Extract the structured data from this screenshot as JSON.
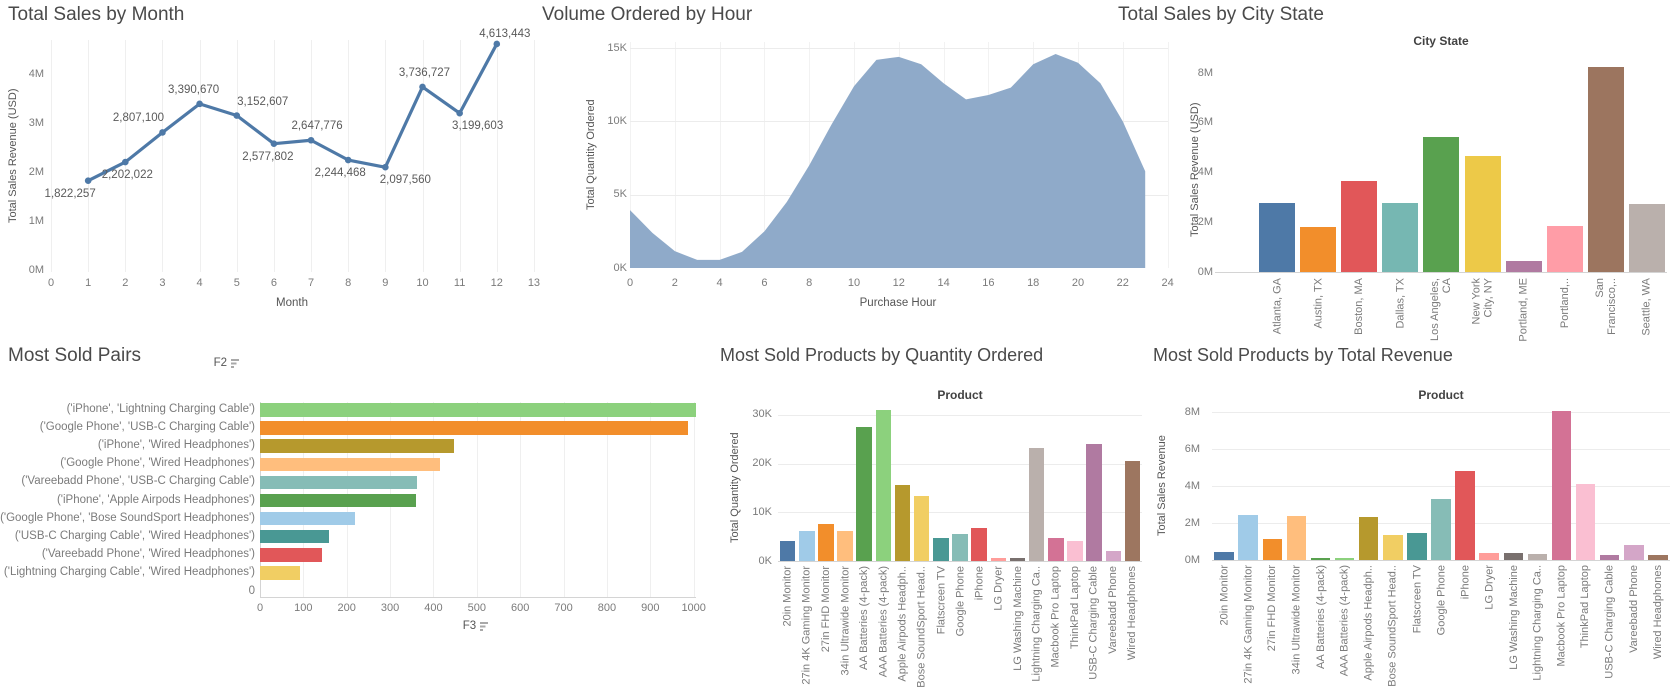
{
  "chart_data": [
    {
      "id": "total-sales-by-month",
      "type": "line",
      "title": "Total Sales by Month",
      "xlabel": "Month",
      "ylabel": "Total Sales Revenue (USD)",
      "x": [
        1,
        2,
        3,
        4,
        5,
        6,
        7,
        8,
        9,
        10,
        11,
        12
      ],
      "values": [
        1822257,
        2202022,
        2807100,
        3390670,
        3152607,
        2577802,
        2647776,
        2244468,
        2097560,
        3736727,
        3199603,
        4613443
      ],
      "point_labels": [
        "1,822,257",
        "2,202,022",
        "2,807,100",
        "3,390,670",
        "3,152,607",
        "2,577,802",
        "2,647,776",
        "2,244,468",
        "2,097,560",
        "3,736,727",
        "3,199,603",
        "4,613,443"
      ],
      "label_dy": [
        7,
        7,
        -20,
        -20,
        -20,
        7,
        -20,
        7,
        7,
        -20,
        7,
        -16
      ],
      "label_dx": [
        -18,
        2,
        -24,
        -6,
        26,
        -6,
        6,
        -8,
        20,
        2,
        18,
        8
      ],
      "xticks": [
        "0",
        "1",
        "2",
        "3",
        "4",
        "5",
        "6",
        "7",
        "8",
        "9",
        "10",
        "11",
        "12",
        "13"
      ],
      "yticks": [
        "0M",
        "1M",
        "2M",
        "3M",
        "4M"
      ],
      "xlim": [
        0,
        13
      ],
      "ylim": [
        0,
        4700000
      ],
      "line_color": "#4e79a7",
      "grid": "vertical"
    },
    {
      "id": "volume-ordered-by-hour",
      "type": "area",
      "title": "Volume Ordered by Hour",
      "xlabel": "Purchase Hour",
      "ylabel": "Total Quantity Ordered",
      "x": [
        0,
        1,
        2,
        3,
        4,
        5,
        6,
        7,
        8,
        9,
        10,
        11,
        12,
        13,
        14,
        15,
        16,
        17,
        18,
        19,
        20,
        21,
        22,
        23
      ],
      "values": [
        3950,
        2400,
        1150,
        550,
        550,
        1100,
        2500,
        4500,
        7000,
        9800,
        12400,
        14200,
        14400,
        13900,
        12600,
        11500,
        11800,
        12300,
        13900,
        14600,
        14000,
        12600,
        10000,
        6600
      ],
      "xticks": [
        "0",
        "2",
        "4",
        "6",
        "8",
        "10",
        "12",
        "14",
        "16",
        "18",
        "20",
        "22",
        "24"
      ],
      "yticks": [
        "0K",
        "5K",
        "10K",
        "15K"
      ],
      "xlim": [
        0,
        24
      ],
      "ylim": [
        0,
        15000
      ],
      "fill_color": "#8faac9",
      "grid": "both"
    },
    {
      "id": "total-sales-by-city-state",
      "type": "bar",
      "title": "Total Sales by City State",
      "subtitle": "City State",
      "ylabel": "Total Sales Revenue (USD)",
      "categories": [
        [
          "Atlanta, GA"
        ],
        [
          "Austin, TX"
        ],
        [
          "Boston, MA"
        ],
        [
          "Dallas, TX"
        ],
        [
          "Los Angeles,",
          "CA"
        ],
        [
          "New York",
          "City, NY"
        ],
        [
          "Portland, ME"
        ],
        [
          "Portland,.."
        ],
        [
          "San",
          "Francisco,.."
        ],
        [
          "Seattle, WA"
        ]
      ],
      "values": [
        2795499,
        1819582,
        3661642,
        2767975,
        5452571,
        4664317,
        449758,
        1870732,
        8262204,
        2747755
      ],
      "colors": [
        "#4e79a7",
        "#f28e2b",
        "#e15759",
        "#76b7b2",
        "#59a14f",
        "#edc948",
        "#b07aa1",
        "#ff9da7",
        "#9c755f",
        "#bab0ac"
      ],
      "yticks": [
        "0M",
        "2M",
        "4M",
        "6M",
        "8M"
      ],
      "ylim": [
        0,
        8800000
      ],
      "grid": "off"
    },
    {
      "id": "most-sold-pairs",
      "type": "hbar",
      "title": "Most Sold Pairs",
      "column_header": "F2",
      "xaxis_label": "F3",
      "categories": [
        "('iPhone', 'Lightning Charging Cable')",
        "('Google Phone', 'USB-C Charging Cable')",
        "('iPhone', 'Wired Headphones')",
        "('Google Phone', 'Wired Headphones')",
        "('Vareebadd Phone', 'USB-C Charging Cable')",
        "('iPhone', 'Apple Airpods Headphones')",
        "('Google Phone', 'Bose SoundSport Headphones')",
        "('USB-C Charging Cable', 'Wired Headphones')",
        "('Vareebadd Phone', 'Wired Headphones')",
        "('Lightning Charging Cable', 'Wired Headphones')"
      ],
      "values": [
        1005,
        987,
        447,
        414,
        361,
        360,
        220,
        160,
        143,
        92
      ],
      "colors": [
        "#8cd17d",
        "#f28e2b",
        "#b6992d",
        "#ffbe7d",
        "#86bcb6",
        "#59a14f",
        "#a0cbe8",
        "#499894",
        "#e15759",
        "#f1ce63"
      ],
      "extra_row_label": "0",
      "xticks": [
        "0",
        "100",
        "200",
        "300",
        "400",
        "500",
        "600",
        "700",
        "800",
        "900",
        "1000"
      ],
      "xlim": [
        0,
        1005
      ],
      "grid": "vertical"
    },
    {
      "id": "most-sold-products-by-quantity-ordered",
      "type": "bar",
      "title": "Most Sold Products by Quantity Ordered",
      "subtitle": "Product",
      "ylabel": "Total Quantity Ordered",
      "categories": [
        [
          "20in Monitor"
        ],
        [
          "27in 4K Gaming Monitor"
        ],
        [
          "27in FHD Monitor"
        ],
        [
          "34in Ultrawide Monitor"
        ],
        [
          "AA Batteries (4-pack)"
        ],
        [
          "AAA Batteries (4-pack)"
        ],
        [
          "Apple Airpods Headph.."
        ],
        [
          "Bose SoundSport Head.."
        ],
        [
          "Flatscreen TV"
        ],
        [
          "Google Phone"
        ],
        [
          "iPhone"
        ],
        [
          "LG Dryer"
        ],
        [
          "LG Washing Machine"
        ],
        [
          "Lightning Charging Ca.."
        ],
        [
          "Macbook Pro Laptop"
        ],
        [
          "ThinkPad Laptop"
        ],
        [
          "USB-C Charging Cable"
        ],
        [
          "Vareebadd Phone"
        ],
        [
          "Wired Headphones"
        ]
      ],
      "values": [
        4129,
        6244,
        7550,
        6199,
        27635,
        31017,
        15661,
        13457,
        4819,
        5532,
        6849,
        646,
        666,
        23217,
        4728,
        4130,
        23975,
        2068,
        20557
      ],
      "colors": [
        "#4e79a7",
        "#a0cbe8",
        "#f28e2b",
        "#ffbe7d",
        "#59a14f",
        "#8cd17d",
        "#b6992d",
        "#f1ce63",
        "#499894",
        "#86bcb6",
        "#e15759",
        "#ff9d9a",
        "#79706e",
        "#bab0ac",
        "#d37295",
        "#fabfd2",
        "#b07aa1",
        "#d4a6c8",
        "#9d7660"
      ],
      "yticks": [
        "0K",
        "10K",
        "20K",
        "30K"
      ],
      "ylim": [
        0,
        33600
      ],
      "grid": "horizontal"
    },
    {
      "id": "most-sold-products-by-total-revenue",
      "type": "bar",
      "title": "Most Sold Products by Total Revenue",
      "subtitle": "Product",
      "ylabel": "Total Sales Revenue",
      "categories": [
        [
          "20in Monitor"
        ],
        [
          "27in 4K Gaming Monitor"
        ],
        [
          "27in FHD Monitor"
        ],
        [
          "34in Ultrawide Monitor"
        ],
        [
          "AA Batteries (4-pack)"
        ],
        [
          "AAA Batteries (4-pack)"
        ],
        [
          "Apple Airpods Headph.."
        ],
        [
          "Bose SoundSport Head.."
        ],
        [
          "Flatscreen TV"
        ],
        [
          "Google Phone"
        ],
        [
          "iPhone"
        ],
        [
          "LG Dryer"
        ],
        [
          "LG Washing Machine"
        ],
        [
          "Lightning Charging Ca.."
        ],
        [
          "Macbook Pro Laptop"
        ],
        [
          "ThinkPad Laptop"
        ],
        [
          "USB-C Charging Cable"
        ],
        [
          "Vareebadd Phone"
        ],
        [
          "Wired Headphones"
        ]
      ],
      "values": [
        454149,
        2435098,
        1132425,
        2355558,
        106118,
        92741,
        2349150,
        1345565,
        1445700,
        3319200,
        4794300,
        387600,
        399600,
        347094,
        8037600,
        4129959,
        286501,
        827200,
        246478
      ],
      "colors": [
        "#4e79a7",
        "#a0cbe8",
        "#f28e2b",
        "#ffbe7d",
        "#59a14f",
        "#8cd17d",
        "#b6992d",
        "#f1ce63",
        "#499894",
        "#86bcb6",
        "#e15759",
        "#ff9d9a",
        "#79706e",
        "#bab0ac",
        "#d37295",
        "#fabfd2",
        "#b07aa1",
        "#d4a6c8",
        "#9d7660"
      ],
      "yticks": [
        "0M",
        "2M",
        "4M",
        "6M",
        "8M"
      ],
      "ylim": [
        0,
        8800000
      ],
      "grid": "horizontal"
    }
  ]
}
